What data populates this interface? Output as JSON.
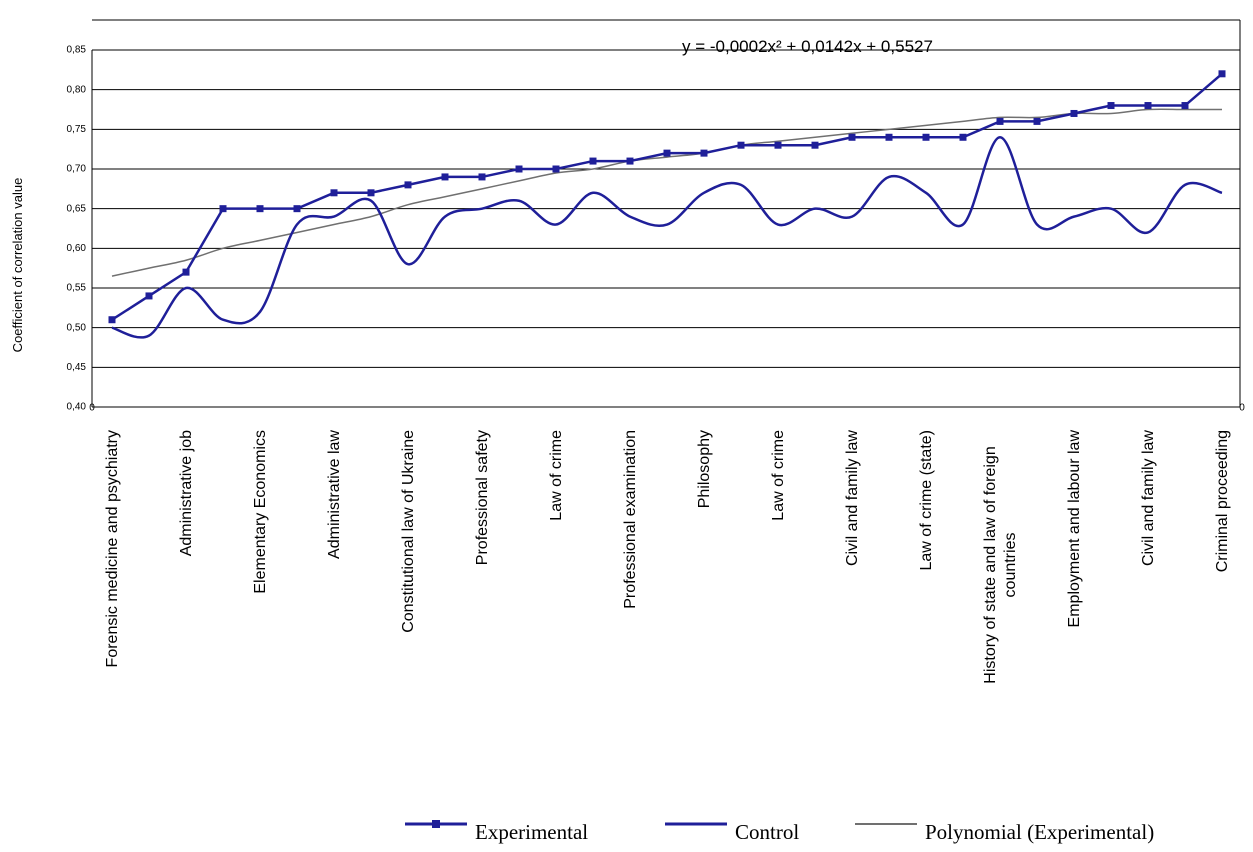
{
  "chart_data": {
    "type": "line",
    "y_label": "Coefficient of correlation value",
    "annotation": "y = -0,0002x² + 0,0142x + 0,5527",
    "x_end_labels": [
      "0",
      "0"
    ],
    "categories": [
      "Forensic medicine and psychiatry",
      null,
      "Administrative job",
      null,
      "Elementary Economics",
      null,
      "Administrative law",
      null,
      "Constitutional law of Ukraine",
      null,
      "Professional safety",
      null,
      "Law of crime",
      null,
      "Professional examination",
      null,
      "Philosophy",
      null,
      "Law of crime",
      null,
      "Civil and family law",
      null,
      "Law of crime (state)",
      null,
      "History of state and law of foreign\ncountries",
      null,
      "Employment and labour law",
      null,
      "Civil and family law",
      null,
      "Criminal proceeding"
    ],
    "series": [
      {
        "name": "Experimental",
        "color": "#1f1f99",
        "marker": "square",
        "smooth": false,
        "values": [
          0.51,
          0.54,
          0.57,
          0.65,
          0.65,
          0.65,
          0.67,
          0.67,
          0.68,
          0.69,
          0.69,
          0.7,
          0.7,
          0.71,
          0.71,
          0.72,
          0.72,
          0.73,
          0.73,
          0.73,
          0.74,
          0.74,
          0.74,
          0.74,
          0.76,
          0.76,
          0.77,
          0.78,
          0.78,
          0.78,
          0.82
        ]
      },
      {
        "name": "Control",
        "color": "#1f1f99",
        "marker": "none",
        "smooth": true,
        "values": [
          0.5,
          0.49,
          0.55,
          0.51,
          0.52,
          0.63,
          0.64,
          0.66,
          0.58,
          0.64,
          0.65,
          0.66,
          0.63,
          0.67,
          0.64,
          0.63,
          0.67,
          0.68,
          0.63,
          0.65,
          0.64,
          0.69,
          0.67,
          0.63,
          0.74,
          0.63,
          0.64,
          0.65,
          0.62,
          0.68,
          0.67
        ]
      },
      {
        "name": "Polynomial (Experimental)",
        "color": "#707070",
        "marker": "none",
        "smooth": true,
        "values": [
          0.565,
          0.575,
          0.585,
          0.6,
          0.61,
          0.62,
          0.63,
          0.64,
          0.655,
          0.665,
          0.675,
          0.685,
          0.695,
          0.7,
          0.71,
          0.715,
          0.72,
          0.73,
          0.735,
          0.74,
          0.745,
          0.75,
          0.755,
          0.76,
          0.765,
          0.765,
          0.77,
          0.77,
          0.775,
          0.775,
          0.775
        ]
      }
    ],
    "ylim": [
      0.4,
      0.85
    ],
    "yticks": [
      {
        "value": 0.4,
        "label": "0,40"
      },
      {
        "value": 0.45,
        "label": "0,45"
      },
      {
        "value": 0.5,
        "label": "0,50"
      },
      {
        "value": 0.55,
        "label": "0,55"
      },
      {
        "value": 0.6,
        "label": "0,60"
      },
      {
        "value": 0.65,
        "label": "0,65"
      },
      {
        "value": 0.7,
        "label": "0,70"
      },
      {
        "value": 0.75,
        "label": "0,75"
      },
      {
        "value": 0.8,
        "label": "0,80"
      },
      {
        "value": 0.85,
        "label": "0,85"
      }
    ],
    "grid": true,
    "legend": "bottom"
  }
}
